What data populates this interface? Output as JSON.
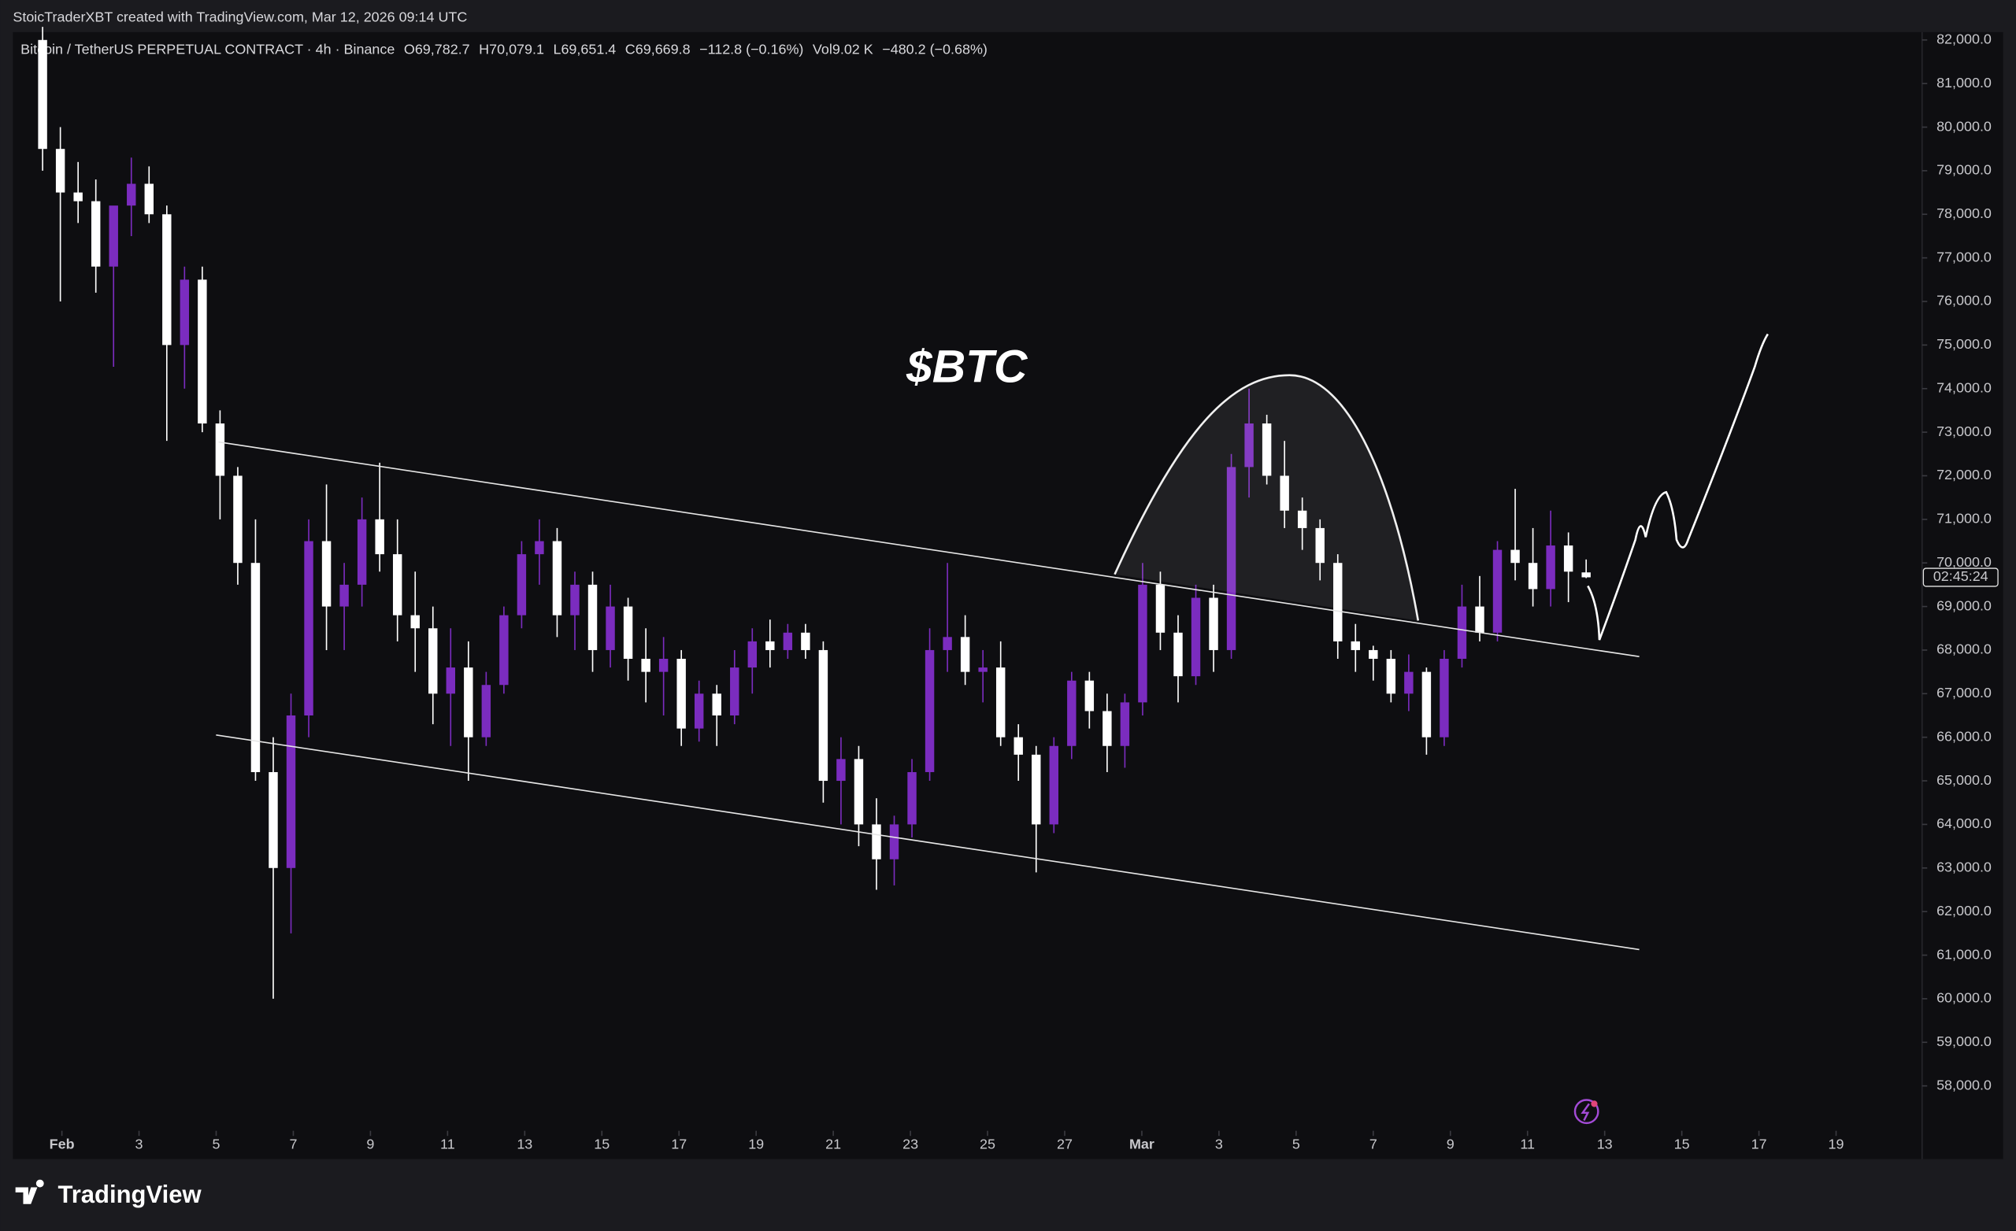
{
  "chart_data": {
    "type": "candlestick",
    "header": "StoicTraderXBT created with TradingView.com, Mar 12, 2026 09:14 UTC",
    "symbol": "Bitcoin / TetherUS PERPETUAL CONTRACT · 4h · Binance",
    "legend_values": [
      "O69,782.7",
      "H70,079.1",
      "L69,651.4",
      "C69,669.8",
      "−112.8 (−0.16%)",
      "Vol9.02 K",
      "−480.2 (−0.68%)"
    ],
    "annotation": "$BTC",
    "countdown": "02:45:24",
    "brand": "TradingView",
    "up_color": "#7b2cbf",
    "down_color": "#ffffff",
    "x": [
      0.5,
      0.96,
      1.42,
      1.88,
      2.34,
      2.8,
      3.26,
      3.72,
      4.18,
      4.64,
      5.1,
      5.56,
      6.02,
      6.48,
      6.94,
      7.4,
      7.86,
      8.32,
      8.78,
      9.24,
      9.7,
      10.16,
      10.62,
      11.08,
      11.54,
      12,
      12.46,
      12.92,
      13.38,
      13.84,
      14.3,
      14.76,
      15.22,
      15.68,
      16.14,
      16.6,
      17.06,
      17.52,
      17.98,
      18.44,
      18.9,
      19.36,
      19.82,
      20.28,
      20.74,
      21.2,
      21.66,
      22.12,
      22.58,
      23.04,
      23.5,
      23.96,
      24.42,
      24.88,
      25.34,
      25.8,
      26.26,
      26.72,
      27.18,
      27.64,
      28.1,
      28.56,
      29.02,
      29.48,
      29.94,
      30.4,
      30.86,
      31.32,
      31.78,
      32.24,
      32.7,
      33.16,
      33.62,
      34.08,
      34.54,
      35,
      35.46,
      35.92,
      36.38,
      36.84,
      37.3,
      37.76,
      38.22,
      38.68,
      39.14,
      39.6,
      40.06,
      40.52
    ],
    "open": [
      82000,
      79500,
      78500,
      78300,
      76800,
      78200,
      78700,
      78000,
      75000,
      76500,
      73200,
      72000,
      70000,
      65200,
      63000,
      66500,
      70500,
      69000,
      69500,
      71000,
      70200,
      68800,
      68500,
      67000,
      67600,
      66000,
      67200,
      68800,
      70200,
      70500,
      68800,
      69500,
      68000,
      69000,
      67800,
      67500,
      67800,
      66200,
      67000,
      66500,
      67600,
      68200,
      68000,
      68400,
      68000,
      65000,
      65500,
      64000,
      63200,
      64000,
      65200,
      68000,
      68300,
      67500,
      67600,
      66000,
      65600,
      64000,
      65800,
      67300,
      66600,
      65800,
      66800,
      69500,
      68400,
      67400,
      69200,
      68000,
      72200,
      73200,
      72000,
      71200,
      70800,
      70000,
      68200,
      68000,
      67800,
      67000,
      67500,
      66000,
      67800,
      69000,
      68400,
      70300,
      70000,
      69400,
      70400,
      69782.7
    ],
    "high": [
      82300,
      80000,
      79200,
      78800,
      78000,
      79300,
      79100,
      78200,
      76800,
      76800,
      73500,
      72200,
      71000,
      66000,
      67000,
      71000,
      71800,
      70000,
      71500,
      72300,
      71000,
      69800,
      69000,
      68500,
      68200,
      67500,
      69000,
      70500,
      71000,
      70800,
      69800,
      69800,
      69500,
      69200,
      68500,
      68300,
      68000,
      67300,
      67200,
      68000,
      68500,
      68700,
      68600,
      68600,
      68200,
      66000,
      65800,
      64600,
      64200,
      65500,
      68500,
      70000,
      68800,
      68000,
      68200,
      66300,
      65800,
      66000,
      67500,
      67500,
      67000,
      67000,
      70000,
      69800,
      68800,
      69500,
      69500,
      72500,
      74000,
      73400,
      72800,
      71500,
      71000,
      70200,
      68600,
      68100,
      68000,
      67900,
      67600,
      68000,
      69500,
      69700,
      70500,
      71700,
      70800,
      71200,
      70700,
      70079.1
    ],
    "low": [
      79000,
      76000,
      77800,
      76200,
      74500,
      77500,
      77800,
      72800,
      74000,
      73000,
      71000,
      69500,
      65000,
      60000,
      61500,
      66000,
      68000,
      68000,
      69000,
      69800,
      68200,
      67500,
      66300,
      65800,
      65000,
      65800,
      67000,
      68500,
      69500,
      68300,
      68000,
      67500,
      67600,
      67300,
      66800,
      66500,
      65800,
      65900,
      65800,
      66300,
      67000,
      67600,
      67800,
      67800,
      64500,
      64000,
      63500,
      62500,
      62600,
      63700,
      65000,
      67500,
      67200,
      66800,
      65800,
      65000,
      62900,
      63800,
      65500,
      66200,
      65200,
      65300,
      66500,
      68000,
      66800,
      67200,
      67500,
      67800,
      71500,
      71800,
      70800,
      70300,
      69600,
      67800,
      67500,
      67300,
      66800,
      66600,
      65600,
      65800,
      67600,
      68200,
      68200,
      69600,
      69000,
      69000,
      69100,
      69651.4
    ],
    "close": [
      79500,
      78500,
      78300,
      76800,
      78200,
      78700,
      78000,
      75000,
      76500,
      73200,
      72000,
      70000,
      65200,
      63000,
      66500,
      70500,
      69000,
      69500,
      71000,
      70200,
      68800,
      68500,
      67000,
      67600,
      66000,
      67200,
      68800,
      70200,
      70500,
      68800,
      69500,
      68000,
      69000,
      67800,
      67500,
      67800,
      66200,
      67000,
      66500,
      67600,
      68200,
      68000,
      68400,
      68000,
      65000,
      65500,
      64000,
      63200,
      64000,
      65200,
      68000,
      68300,
      67500,
      67600,
      66000,
      65600,
      64000,
      65800,
      67300,
      66600,
      65800,
      66800,
      69500,
      68400,
      67400,
      69200,
      68000,
      72200,
      73200,
      72000,
      71200,
      70800,
      70000,
      68200,
      68000,
      67800,
      67000,
      67500,
      66000,
      67800,
      69000,
      68400,
      70300,
      70000,
      69400,
      70400,
      69800,
      69669.8
    ],
    "xlim": [
      -0.27,
      49.23
    ],
    "ylim": [
      56970,
      82180
    ],
    "xticks": [
      {
        "value": 1,
        "label": "Feb"
      },
      3,
      5,
      7,
      9,
      11,
      13,
      15,
      17,
      19,
      21,
      23,
      25,
      27,
      {
        "value": 29,
        "label": "Mar"
      },
      {
        "value": 31,
        "label": "3"
      },
      {
        "value": 33,
        "label": "5"
      },
      {
        "value": 35,
        "label": "7"
      },
      {
        "value": 37,
        "label": "9"
      },
      {
        "value": 39,
        "label": "11"
      },
      {
        "value": 41,
        "label": "13"
      },
      {
        "value": 43,
        "label": "15"
      },
      {
        "value": 45,
        "label": "17"
      },
      {
        "value": 47,
        "label": "19"
      }
    ],
    "yticks": [
      {
        "value": 58000,
        "label": "58,000.0"
      },
      {
        "value": 59000,
        "label": "59,000.0"
      },
      {
        "value": 60000,
        "label": "60,000.0"
      },
      {
        "value": 61000,
        "label": "61,000.0"
      },
      {
        "value": 62000,
        "label": "62,000.0"
      },
      {
        "value": 63000,
        "label": "63,000.0"
      },
      {
        "value": 64000,
        "label": "64,000.0"
      },
      {
        "value": 65000,
        "label": "65,000.0"
      },
      {
        "value": 66000,
        "label": "66,000.0"
      },
      {
        "value": 67000,
        "label": "67,000.0"
      },
      {
        "value": 68000,
        "label": "68,000.0"
      },
      {
        "value": 69000,
        "label": "69,000.0"
      },
      {
        "value": 70000,
        "label": "70,000.0"
      },
      {
        "value": 71000,
        "label": "71,000.0"
      },
      {
        "value": 72000,
        "label": "72,000.0"
      },
      {
        "value": 73000,
        "label": "73,000.0"
      },
      {
        "value": 74000,
        "label": "74,000.0"
      },
      {
        "value": 75000,
        "label": "75,000.0"
      },
      {
        "value": 76000,
        "label": "76,000.0"
      },
      {
        "value": 77000,
        "label": "77,000.0"
      },
      {
        "value": 78000,
        "label": "78,000.0"
      },
      {
        "value": 79000,
        "label": "79,000.0"
      },
      {
        "value": 80000,
        "label": "80,000.0"
      },
      {
        "value": 81000,
        "label": "81,000.0"
      },
      {
        "value": 82000,
        "label": "82,000.0"
      }
    ],
    "grid": false
  }
}
